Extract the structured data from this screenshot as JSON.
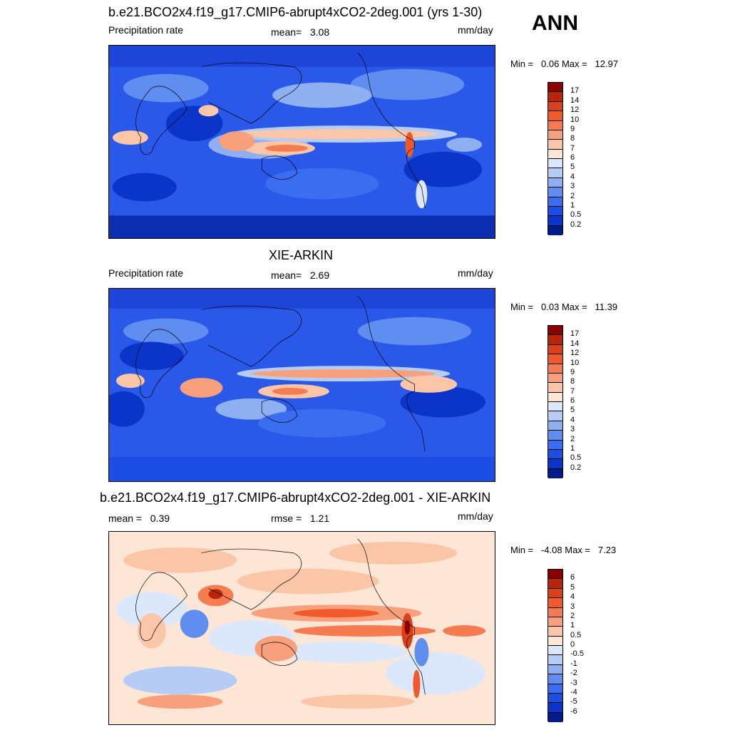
{
  "panel_ann": "ANN",
  "panels": [
    {
      "title": "b.e21.BCO2x4.f19_g17.CMIP6-abrupt4xCO2-2deg.001 (yrs 1-30)",
      "left_label": "Precipitation rate",
      "stat_label": "mean=",
      "stat_value": "3.08",
      "units": "mm/day",
      "min_label": "Min =",
      "min_value": "0.06",
      "max_label": "Max =",
      "max_value": "12.97"
    },
    {
      "title": "XIE-ARKIN",
      "left_label": "Precipitation rate",
      "stat_label": "mean=",
      "stat_value": "2.69",
      "units": "mm/day",
      "min_label": "Min =",
      "min_value": "0.03",
      "max_label": "Max =",
      "max_value": "11.39"
    },
    {
      "title": "b.e21.BCO2x4.f19_g17.CMIP6-abrupt4xCO2-2deg.001 - XIE-ARKIN",
      "mean_label": "mean =",
      "mean_value": "0.39",
      "rmse_label": "rmse =",
      "rmse_value": "1.21",
      "units": "mm/day",
      "min_label": "Min =",
      "min_value": "-4.08",
      "max_label": "Max =",
      "max_value": "7.23"
    }
  ],
  "colorbars": {
    "precip": {
      "ticks": [
        "17",
        "14",
        "12",
        "10",
        "9",
        "8",
        "7",
        "6",
        "5",
        "4",
        "3",
        "2",
        "1",
        "0.5",
        "0.2"
      ],
      "colors": [
        "#8b0000",
        "#b8250a",
        "#d8411a",
        "#f05a2a",
        "#f47c50",
        "#f8a07c",
        "#fbc6a8",
        "#fde6d6",
        "#dbe8fb",
        "#b5cdf5",
        "#8fb0f0",
        "#5f8ef0",
        "#3a6df0",
        "#1a4ee4",
        "#0a35c8",
        "#001c8a"
      ]
    },
    "diff": {
      "ticks": [
        "6",
        "5",
        "4",
        "3",
        "2",
        "1",
        "0.5",
        "0",
        "-0.5",
        "-1",
        "-2",
        "-3",
        "-4",
        "-5",
        "-6"
      ],
      "colors": [
        "#8b0000",
        "#b8250a",
        "#d8411a",
        "#f05a2a",
        "#f47c50",
        "#f8a07c",
        "#fbc6a8",
        "#fde6d6",
        "#dbe8fb",
        "#b5cdf5",
        "#8fb0f0",
        "#5f8ef0",
        "#3a6df0",
        "#1a4ee4",
        "#0a35c8",
        "#001c8a"
      ]
    }
  }
}
